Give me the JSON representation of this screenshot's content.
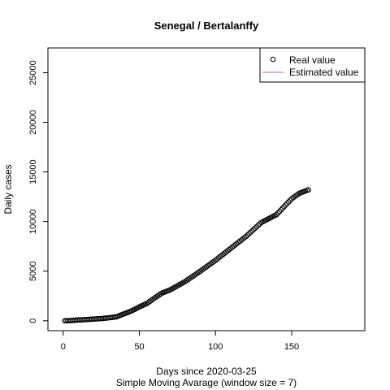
{
  "chart_data": {
    "type": "scatter",
    "title": "Senegal / Bertalanffy",
    "xlabel": "Days since 2020-03-25",
    "ylabel": "Daily cases",
    "subtitle": "Simple Moving Avarage (window size = 7)",
    "xlim": [
      -10,
      198
    ],
    "ylim": [
      -1000,
      27500
    ],
    "x_ticks": [
      0,
      50,
      100,
      150
    ],
    "y_ticks": [
      0,
      5000,
      10000,
      15000,
      20000,
      25000
    ],
    "grid": false,
    "legend_position": "top-right",
    "legend": [
      {
        "label": "Real value",
        "symbol": "open-circle",
        "color": "#000000"
      },
      {
        "label": "Estimated value",
        "symbol": "line",
        "color": "#9966cc"
      }
    ],
    "series": [
      {
        "name": "Real value",
        "symbol": "open-circle",
        "anchors": [
          [
            1,
            0
          ],
          [
            5,
            20
          ],
          [
            10,
            80
          ],
          [
            15,
            120
          ],
          [
            20,
            170
          ],
          [
            25,
            220
          ],
          [
            30,
            300
          ],
          [
            35,
            400
          ],
          [
            40,
            700
          ],
          [
            45,
            1000
          ],
          [
            50,
            1400
          ],
          [
            55,
            1750
          ],
          [
            60,
            2300
          ],
          [
            65,
            2800
          ],
          [
            70,
            3100
          ],
          [
            80,
            3950
          ],
          [
            90,
            5000
          ],
          [
            100,
            6100
          ],
          [
            110,
            7300
          ],
          [
            120,
            8500
          ],
          [
            130,
            9900
          ],
          [
            140,
            10700
          ],
          [
            145,
            11500
          ],
          [
            150,
            12300
          ],
          [
            155,
            12850
          ],
          [
            161,
            13200
          ]
        ]
      },
      {
        "name": "Estimated value",
        "color": "#9966cc",
        "values": []
      }
    ]
  }
}
